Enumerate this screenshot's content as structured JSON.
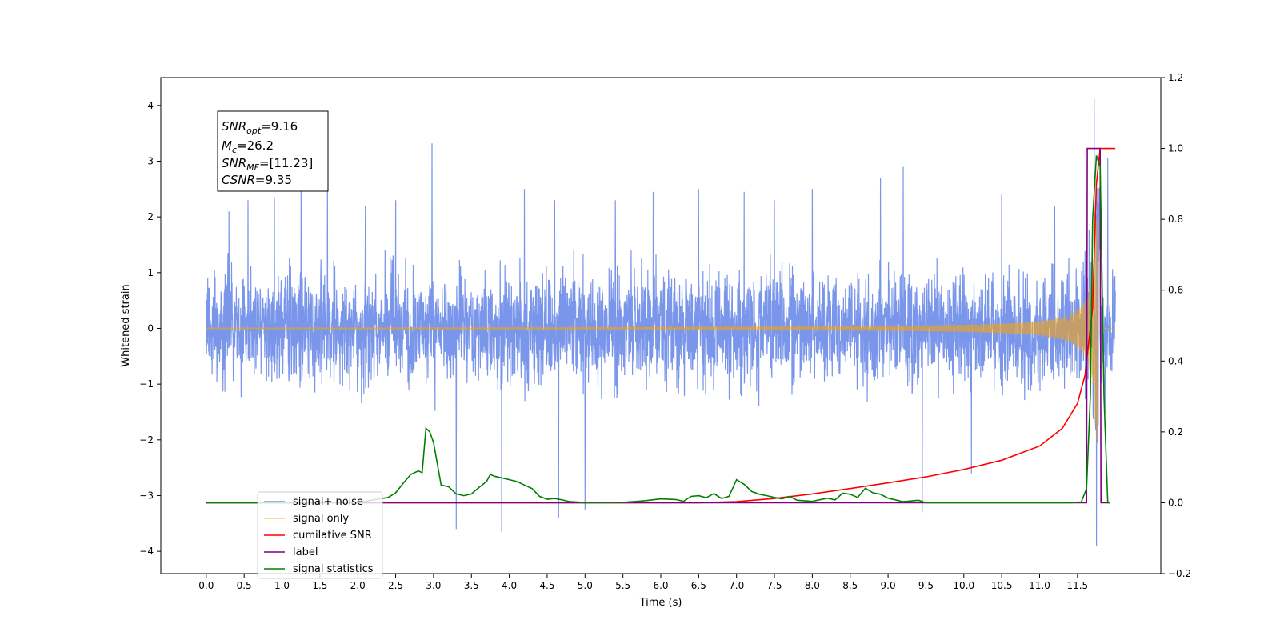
{
  "chart_data": {
    "type": "line",
    "xlabel": "Time (s)",
    "ylabel": "Whitened strain",
    "xlim": [
      -0.6,
      12.6
    ],
    "ylim": [
      -4.4,
      4.5
    ],
    "y2lim": [
      -0.2,
      1.2
    ],
    "grid": false,
    "x_ticks": [
      0.0,
      0.5,
      1.0,
      1.5,
      2.0,
      2.5,
      3.0,
      3.5,
      4.0,
      4.5,
      5.0,
      5.5,
      6.0,
      6.5,
      7.0,
      7.5,
      8.0,
      8.5,
      9.0,
      9.5,
      10.0,
      10.5,
      11.0,
      11.5
    ],
    "x_tick_labels": [
      "0.0",
      "0.5",
      "1.0",
      "1.5",
      "2.0",
      "2.5",
      "3.0",
      "3.5",
      "4.0",
      "4.5",
      "5.0",
      "5.5",
      "6.0",
      "6.5",
      "7.0",
      "7.5",
      "8.0",
      "8.5",
      "9.0",
      "9.5",
      "10.0",
      "10.5",
      "11.0",
      "11.5"
    ],
    "y_ticks": [
      -4,
      -3,
      -2,
      -1,
      0,
      1,
      2,
      3,
      4
    ],
    "y_tick_labels": [
      "−4",
      "−3",
      "−2",
      "−1",
      "0",
      "1",
      "2",
      "3",
      "4"
    ],
    "y2_ticks": [
      -0.2,
      0.0,
      0.2,
      0.4,
      0.6,
      0.8,
      1.0,
      1.2
    ],
    "y2_tick_labels": [
      "−0.2",
      "0.0",
      "0.2",
      "0.4",
      "0.6",
      "0.8",
      "1.0",
      "1.2"
    ],
    "annotation": {
      "lines": [
        {
          "sym": "SNR",
          "sub": "opt",
          "value": "=9.16"
        },
        {
          "sym": "M",
          "sub": "c",
          "value": "=26.2"
        },
        {
          "sym": "SNR",
          "sub": "MF",
          "value": "=[11.23]"
        },
        {
          "sym": "CSNR",
          "sub": "",
          "value": "=9.35"
        }
      ]
    },
    "legend_position": "lower-left",
    "series": [
      {
        "name": "signal+ noise",
        "color": "#4169e1",
        "axis": "left",
        "style": "noise",
        "x_range": [
          0.0,
          12.0
        ],
        "envelope": 1.25,
        "peaks": [
          [
            0.3,
            2.1
          ],
          [
            0.55,
            2.3
          ],
          [
            0.9,
            2.35
          ],
          [
            1.25,
            2.6
          ],
          [
            1.6,
            2.7
          ],
          [
            2.1,
            2.2
          ],
          [
            2.5,
            2.3
          ],
          [
            2.98,
            3.32
          ],
          [
            3.3,
            -3.6
          ],
          [
            3.9,
            -3.65
          ],
          [
            4.2,
            2.5
          ],
          [
            4.6,
            2.3
          ],
          [
            4.65,
            -3.4
          ],
          [
            5.0,
            -3.25
          ],
          [
            5.4,
            2.3
          ],
          [
            5.9,
            2.45
          ],
          [
            6.5,
            2.5
          ],
          [
            7.1,
            2.45
          ],
          [
            7.5,
            2.3
          ],
          [
            8.0,
            2.5
          ],
          [
            8.9,
            2.7
          ],
          [
            9.2,
            2.9
          ],
          [
            9.45,
            -3.3
          ],
          [
            10.1,
            -2.6
          ],
          [
            10.5,
            2.4
          ],
          [
            11.2,
            2.2
          ],
          [
            11.72,
            4.12
          ],
          [
            11.75,
            -3.9
          ],
          [
            11.9,
            3.05
          ]
        ]
      },
      {
        "name": "signal only",
        "color": "#ffa500",
        "axis": "left",
        "style": "chirp",
        "x_range": [
          0.0,
          12.0
        ],
        "merger_time": 11.78,
        "peak_amplitude": 2.0
      },
      {
        "name": "cumilative SNR",
        "color": "#ff0000",
        "axis": "right",
        "x": [
          0.0,
          6.0,
          6.5,
          7.0,
          7.5,
          8.0,
          8.5,
          9.0,
          9.5,
          10.0,
          10.5,
          11.0,
          11.3,
          11.5,
          11.6,
          11.7,
          11.75,
          11.8,
          11.9,
          12.0
        ],
        "y": [
          0.0,
          0.0,
          0.0,
          0.003,
          0.012,
          0.025,
          0.04,
          0.056,
          0.073,
          0.094,
          0.12,
          0.16,
          0.21,
          0.28,
          0.36,
          0.55,
          0.9,
          1.0,
          1.0,
          1.0
        ]
      },
      {
        "name": "label",
        "color": "#800080",
        "axis": "right",
        "x": [
          0.0,
          11.62,
          11.63,
          11.8,
          11.81,
          11.93
        ],
        "y": [
          0.0,
          0.0,
          1.0,
          1.0,
          0.0,
          0.0
        ]
      },
      {
        "name": "signal statistics",
        "color": "#008000",
        "axis": "right",
        "x": [
          0.0,
          2.0,
          2.2,
          2.4,
          2.5,
          2.6,
          2.7,
          2.8,
          2.85,
          2.9,
          2.95,
          3.0,
          3.1,
          3.2,
          3.3,
          3.4,
          3.5,
          3.6,
          3.7,
          3.75,
          3.8,
          3.9,
          4.0,
          4.1,
          4.2,
          4.3,
          4.4,
          4.5,
          4.6,
          4.7,
          4.8,
          4.9,
          5.0,
          5.5,
          5.8,
          6.0,
          6.2,
          6.3,
          6.4,
          6.5,
          6.6,
          6.7,
          6.8,
          6.9,
          7.0,
          7.1,
          7.2,
          7.3,
          7.4,
          7.5,
          7.6,
          7.7,
          7.8,
          8.0,
          8.2,
          8.3,
          8.4,
          8.5,
          8.6,
          8.7,
          8.8,
          8.9,
          9.0,
          9.2,
          9.4,
          9.5,
          11.4,
          11.55,
          11.62,
          11.67,
          11.7,
          11.75,
          11.78,
          11.8,
          11.85,
          11.9,
          11.93
        ],
        "y": [
          0.0,
          0.0,
          0.008,
          0.015,
          0.028,
          0.055,
          0.08,
          0.09,
          0.085,
          0.21,
          0.2,
          0.17,
          0.05,
          0.045,
          0.025,
          0.02,
          0.025,
          0.043,
          0.06,
          0.08,
          0.075,
          0.07,
          0.065,
          0.06,
          0.05,
          0.04,
          0.018,
          0.01,
          0.012,
          0.008,
          0.003,
          0.002,
          0.0,
          0.001,
          0.006,
          0.011,
          0.009,
          0.004,
          0.018,
          0.02,
          0.014,
          0.026,
          0.012,
          0.018,
          0.065,
          0.052,
          0.032,
          0.024,
          0.02,
          0.015,
          0.011,
          0.018,
          0.007,
          0.004,
          0.013,
          0.008,
          0.027,
          0.024,
          0.015,
          0.041,
          0.028,
          0.024,
          0.013,
          0.003,
          0.007,
          0.0,
          0.0,
          0.002,
          0.04,
          0.3,
          0.8,
          0.98,
          0.96,
          0.95,
          0.3,
          0.0,
          0.0
        ]
      }
    ]
  }
}
